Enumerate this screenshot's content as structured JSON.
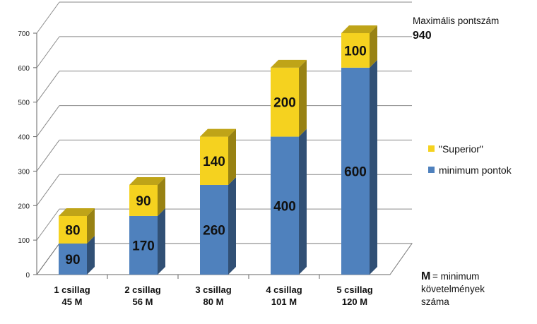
{
  "chart_data": {
    "type": "bar",
    "stacked": true,
    "categories": [
      [
        "1 csillag",
        "45 M"
      ],
      [
        "2 csillag",
        "56 M"
      ],
      [
        "3 csillag",
        "80 M"
      ],
      [
        "4 csillag",
        "101 M"
      ],
      [
        "5 csillag",
        "120 M"
      ]
    ],
    "series": [
      {
        "name": "minimum pontok",
        "values": [
          90,
          170,
          260,
          400,
          600
        ],
        "color": "#4F81BD"
      },
      {
        "name": "\"Superior\"",
        "values": [
          80,
          90,
          140,
          200,
          100
        ],
        "color": "#F5D21F"
      }
    ],
    "ylim": [
      0,
      700
    ],
    "yticks": [
      0,
      100,
      200,
      300,
      400,
      500,
      600,
      700
    ],
    "grid": true,
    "legend_placement": "right",
    "data_labels": true
  },
  "annotations": {
    "max_label": "Maximális pontszám",
    "max_value": "940",
    "m_key": "M",
    "m_desc": [
      "= minimum",
      "követelmények",
      "száma"
    ]
  }
}
